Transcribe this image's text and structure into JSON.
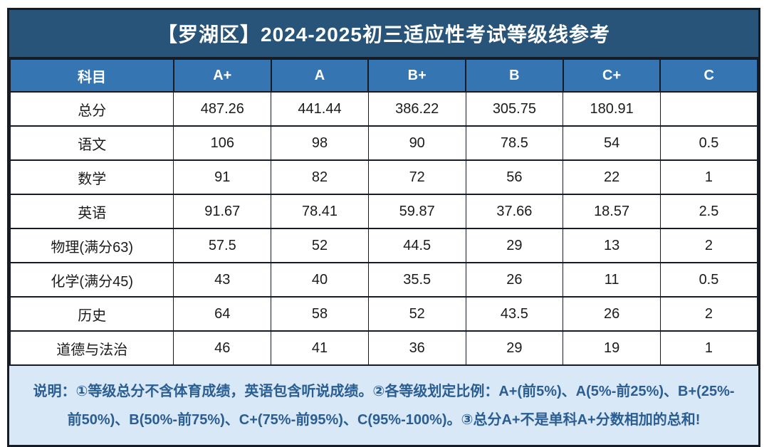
{
  "title": "【罗湖区】2024-2025初三适应性考试等级线参考",
  "colors": {
    "title_bg": "#275478",
    "header_bg": "#3575b2",
    "header_text": "#ffffff",
    "border": "#171b23",
    "cell_text": "#1b1b1b",
    "note_bg": "#d9e8f6",
    "note_text": "#2a5d92",
    "page_bg": "#ffffff"
  },
  "table": {
    "columns": [
      "科目",
      "A+",
      "A",
      "B+",
      "B",
      "C+",
      "C"
    ],
    "rows": [
      {
        "subject": "总分",
        "values": [
          "487.26",
          "441.44",
          "386.22",
          "305.75",
          "180.91",
          ""
        ]
      },
      {
        "subject": "语文",
        "values": [
          "106",
          "98",
          "90",
          "78.5",
          "54",
          "0.5"
        ]
      },
      {
        "subject": "数学",
        "values": [
          "91",
          "82",
          "72",
          "56",
          "22",
          "1"
        ]
      },
      {
        "subject": "英语",
        "values": [
          "91.67",
          "78.41",
          "59.87",
          "37.66",
          "18.57",
          "2.5"
        ]
      },
      {
        "subject": "物理(满分63)",
        "values": [
          "57.5",
          "52",
          "44.5",
          "29",
          "13",
          "2"
        ]
      },
      {
        "subject": "化学(满分45)",
        "values": [
          "43",
          "40",
          "35.5",
          "26",
          "11",
          "0.5"
        ]
      },
      {
        "subject": "历史",
        "values": [
          "64",
          "58",
          "52",
          "43.5",
          "26",
          "2"
        ]
      },
      {
        "subject": "道德与法治",
        "values": [
          "46",
          "41",
          "36",
          "29",
          "19",
          "1"
        ]
      }
    ]
  },
  "note": {
    "lines": [
      "说明：①等级总分不含体育成绩，英语包含听说成绩。②各等级划定比例：A+(前5%)、A(5%-前25%)、B+(25%-",
      "前50%)、B(50%-前75%)、C+(75%-前95%)、C(95%-100%)。③总分A+不是单科A+分数相加的总和!"
    ]
  },
  "chart_data": {
    "type": "table",
    "title": "【罗湖区】2024-2025初三适应性考试等级线参考",
    "columns": [
      "科目",
      "A+",
      "A",
      "B+",
      "B",
      "C+",
      "C"
    ],
    "rows": [
      [
        "总分",
        487.26,
        441.44,
        386.22,
        305.75,
        180.91,
        null
      ],
      [
        "语文",
        106,
        98,
        90,
        78.5,
        54,
        0.5
      ],
      [
        "数学",
        91,
        82,
        72,
        56,
        22,
        1
      ],
      [
        "英语",
        91.67,
        78.41,
        59.87,
        37.66,
        18.57,
        2.5
      ],
      [
        "物理(满分63)",
        57.5,
        52,
        44.5,
        29,
        13,
        2
      ],
      [
        "化学(满分45)",
        43,
        40,
        35.5,
        26,
        11,
        0.5
      ],
      [
        "历史",
        64,
        58,
        52,
        43.5,
        26,
        2
      ],
      [
        "道德与法治",
        46,
        41,
        36,
        29,
        19,
        1
      ]
    ],
    "notes": "说明：①等级总分不含体育成绩，英语包含听说成绩。②各等级划定比例：A+(前5%)、A(5%-前25%)、B+(25%-前50%)、B(50%-前75%)、C+(75%-前95%)、C(95%-100%)。③总分A+不是单科A+分数相加的总和!"
  }
}
